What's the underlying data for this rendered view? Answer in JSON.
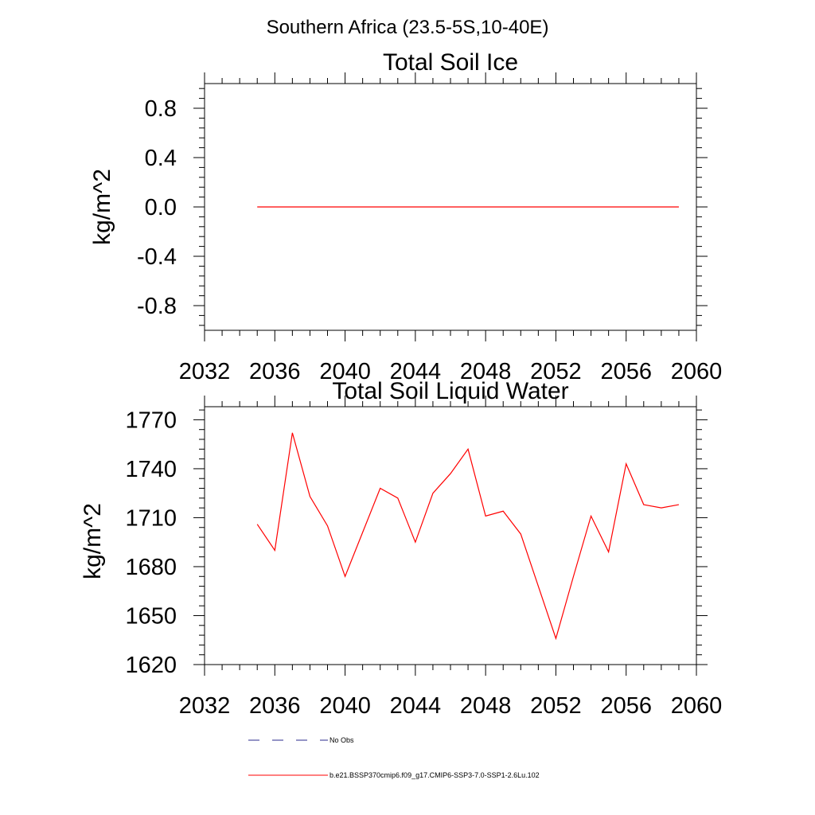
{
  "figure": {
    "main_title": "Southern Africa (23.5-5S,10-40E)"
  },
  "chart_data": [
    {
      "type": "line",
      "title": "Total Soil Ice",
      "xlabel": "",
      "ylabel": "kg/m^2",
      "xlim": [
        2032,
        2060
      ],
      "ylim": [
        -1.0,
        1.0
      ],
      "xticks": [
        2032,
        2036,
        2040,
        2044,
        2048,
        2052,
        2056,
        2060
      ],
      "yticks": [
        -0.8,
        -0.4,
        0.0,
        0.4,
        0.8
      ],
      "ytick_labels": [
        "-0.8",
        "-0.4",
        "0.0",
        "0.4",
        "0.8"
      ],
      "grid": false,
      "series": [
        {
          "name": "b.e21.BSSP370cmip6.f09_g17.CMIP6-SSP3-7.0-SSP1-2.6Lu.102",
          "color": "#ff0000",
          "x": [
            2035,
            2036,
            2037,
            2038,
            2039,
            2040,
            2041,
            2042,
            2043,
            2044,
            2045,
            2046,
            2047,
            2048,
            2049,
            2050,
            2051,
            2052,
            2053,
            2054,
            2055,
            2056,
            2057,
            2058,
            2059
          ],
          "values": [
            0,
            0,
            0,
            0,
            0,
            0,
            0,
            0,
            0,
            0,
            0,
            0,
            0,
            0,
            0,
            0,
            0,
            0,
            0,
            0,
            0,
            0,
            0,
            0,
            0
          ]
        }
      ]
    },
    {
      "type": "line",
      "title": "Total Soil Liquid Water",
      "xlabel": "",
      "ylabel": "kg/m^2",
      "xlim": [
        2032,
        2060
      ],
      "ylim": [
        1620,
        1778
      ],
      "xticks": [
        2032,
        2036,
        2040,
        2044,
        2048,
        2052,
        2056,
        2060
      ],
      "yticks": [
        1620,
        1650,
        1680,
        1710,
        1740,
        1770
      ],
      "ytick_labels": [
        "1620",
        "1650",
        "1680",
        "1710",
        "1740",
        "1770"
      ],
      "grid": false,
      "series": [
        {
          "name": "b.e21.BSSP370cmip6.f09_g17.CMIP6-SSP3-7.0-SSP1-2.6Lu.102",
          "color": "#ff0000",
          "x": [
            2035,
            2036,
            2037,
            2038,
            2039,
            2040,
            2041,
            2042,
            2043,
            2044,
            2045,
            2046,
            2047,
            2048,
            2049,
            2050,
            2051,
            2052,
            2053,
            2054,
            2055,
            2056,
            2057,
            2058,
            2059
          ],
          "values": [
            1706,
            1690,
            1762,
            1723,
            1705,
            1674,
            1701,
            1728,
            1722,
            1695,
            1725,
            1737,
            1752,
            1711,
            1714,
            1700,
            1668,
            1636,
            1674,
            1711,
            1689,
            1743,
            1718,
            1716,
            1718
          ]
        }
      ]
    }
  ],
  "legend": {
    "entries": [
      {
        "label": "No Obs",
        "color": "#2b2b8c",
        "style": "dashed"
      },
      {
        "label": "b.e21.BSSP370cmip6.f09_g17.CMIP6-SSP3-7.0-SSP1-2.6Lu.102",
        "color": "#ff0000",
        "style": "solid"
      }
    ]
  }
}
